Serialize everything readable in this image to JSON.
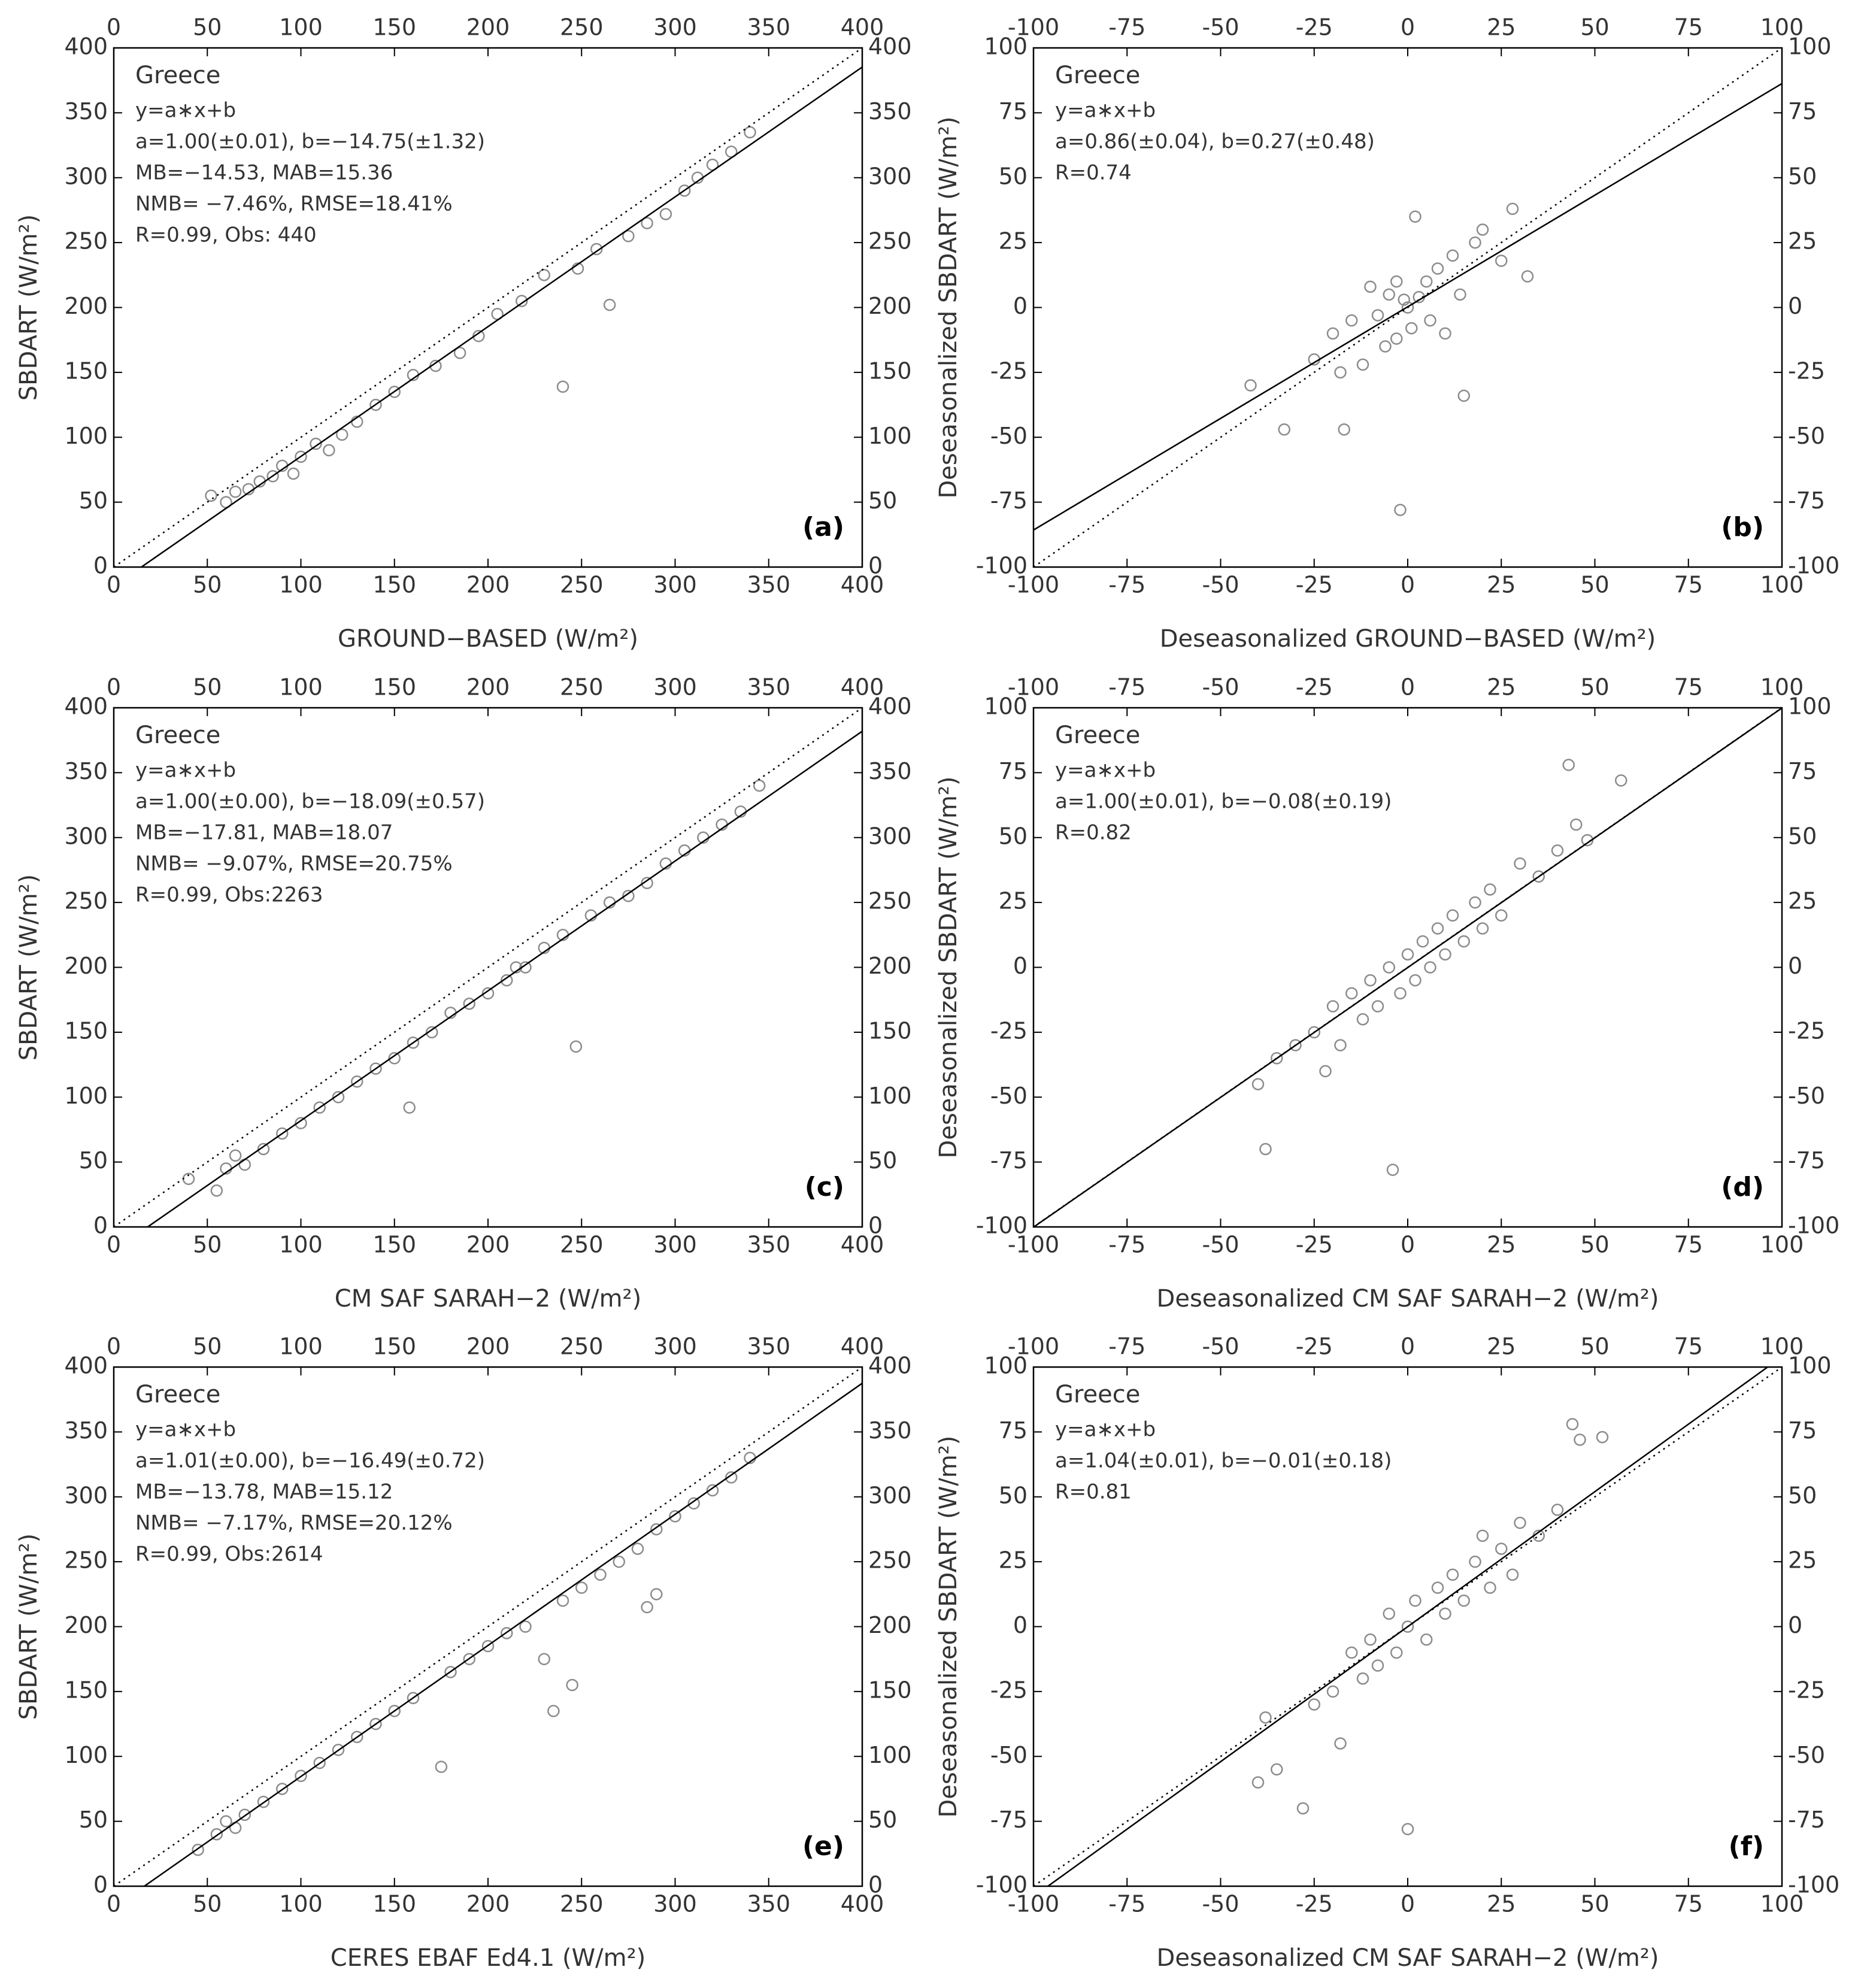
{
  "chart_data": [
    {
      "type": "scatter",
      "xlabel": "GROUND−BASED (W/m²)",
      "ylabel": "SBDART (W/m²)",
      "panel_label": "(a)",
      "annotations": [
        "Greece",
        "y=a∗x+b",
        "a=1.00(±0.01), b=−14.75(±1.32)",
        "MB=−14.53, MAB=15.36",
        "NMB= −7.46%, RMSE=18.41%",
        "R=0.99, Obs: 440"
      ],
      "fit": {
        "slope": 1.0,
        "intercept": -14.75
      },
      "color": "#8c8c8c",
      "xlim": [
        0,
        400
      ],
      "ylim": [
        0,
        400
      ],
      "xticks": [
        0,
        50,
        100,
        150,
        200,
        250,
        300,
        350,
        400
      ],
      "yticks": [
        0,
        50,
        100,
        150,
        200,
        250,
        300,
        350,
        400
      ],
      "x": [
        52,
        60,
        65,
        72,
        78,
        85,
        90,
        96,
        100,
        108,
        115,
        122,
        130,
        140,
        150,
        160,
        172,
        185,
        195,
        205,
        218,
        230,
        240,
        248,
        258,
        265,
        275,
        285,
        295,
        305,
        312,
        320,
        330,
        340
      ],
      "values": [
        55,
        50,
        58,
        60,
        66,
        70,
        78,
        72,
        85,
        95,
        90,
        102,
        112,
        125,
        135,
        148,
        155,
        165,
        178,
        195,
        205,
        225,
        139,
        230,
        245,
        202,
        255,
        265,
        272,
        290,
        300,
        310,
        320,
        335
      ]
    },
    {
      "type": "scatter",
      "xlabel": "Deseasonalized GROUND−BASED (W/m²)",
      "ylabel": "Deseasonalized SBDART (W/m²)",
      "panel_label": "(b)",
      "annotations": [
        "Greece",
        "y=a∗x+b",
        "a=0.86(±0.04), b=0.27(±0.48)",
        "R=0.74"
      ],
      "fit": {
        "slope": 0.86,
        "intercept": 0.27
      },
      "color": "#8c8c8c",
      "xlim": [
        -100,
        100
      ],
      "ylim": [
        -100,
        100
      ],
      "xticks": [
        -100,
        -75,
        -50,
        -25,
        0,
        25,
        50,
        75,
        100
      ],
      "yticks": [
        -100,
        -75,
        -50,
        -25,
        0,
        25,
        50,
        75,
        100
      ],
      "x": [
        -42,
        -33,
        -25,
        -20,
        -18,
        -15,
        -12,
        -10,
        -8,
        -6,
        -5,
        -3,
        -2,
        -1,
        0,
        1,
        2,
        3,
        5,
        6,
        8,
        10,
        12,
        15,
        18,
        20,
        25,
        28,
        32,
        -3,
        -17,
        14
      ],
      "values": [
        -30,
        -47,
        -20,
        -10,
        -25,
        -5,
        -22,
        8,
        -3,
        -15,
        5,
        -12,
        -78,
        3,
        0,
        -8,
        35,
        4,
        10,
        -5,
        15,
        -10,
        20,
        -34,
        25,
        30,
        18,
        38,
        12,
        10,
        -47,
        5
      ]
    },
    {
      "type": "scatter",
      "xlabel": "CM SAF SARAH−2 (W/m²)",
      "ylabel": "SBDART (W/m²)",
      "panel_label": "(c)",
      "annotations": [
        "Greece",
        "y=a∗x+b",
        "a=1.00(±0.00), b=−18.09(±0.57)",
        "MB=−17.81, MAB=18.07",
        "NMB= −9.07%, RMSE=20.75%",
        "R=0.99, Obs:2263"
      ],
      "fit": {
        "slope": 1.0,
        "intercept": -18.09
      },
      "color": "#8c8c8c",
      "xlim": [
        0,
        400
      ],
      "ylim": [
        0,
        400
      ],
      "xticks": [
        0,
        50,
        100,
        150,
        200,
        250,
        300,
        350,
        400
      ],
      "yticks": [
        0,
        50,
        100,
        150,
        200,
        250,
        300,
        350,
        400
      ],
      "x": [
        40,
        55,
        60,
        65,
        70,
        80,
        90,
        100,
        110,
        120,
        130,
        140,
        150,
        160,
        170,
        180,
        190,
        200,
        210,
        220,
        230,
        240,
        247,
        255,
        265,
        275,
        285,
        295,
        305,
        315,
        325,
        335,
        345,
        215,
        158
      ],
      "values": [
        37,
        28,
        45,
        55,
        48,
        60,
        72,
        80,
        92,
        100,
        112,
        122,
        130,
        142,
        150,
        165,
        172,
        180,
        190,
        200,
        215,
        225,
        139,
        240,
        250,
        255,
        265,
        280,
        290,
        300,
        310,
        320,
        340,
        200,
        92
      ]
    },
    {
      "type": "scatter",
      "xlabel": "Deseasonalized CM SAF SARAH−2 (W/m²)",
      "ylabel": "Deseasonalized SBDART (W/m²)",
      "panel_label": "(d)",
      "annotations": [
        "Greece",
        "y=a∗x+b",
        "a=1.00(±0.01), b=−0.08(±0.19)",
        "R=0.82"
      ],
      "fit": {
        "slope": 1.0,
        "intercept": -0.08
      },
      "color": "#8c8c8c",
      "xlim": [
        -100,
        100
      ],
      "ylim": [
        -100,
        100
      ],
      "xticks": [
        -100,
        -75,
        -50,
        -25,
        0,
        25,
        50,
        75,
        100
      ],
      "yticks": [
        -100,
        -75,
        -50,
        -25,
        0,
        25,
        50,
        75,
        100
      ],
      "x": [
        -40,
        -38,
        -35,
        -30,
        -25,
        -22,
        -20,
        -18,
        -15,
        -12,
        -10,
        -8,
        -5,
        -4,
        -2,
        0,
        2,
        4,
        6,
        8,
        10,
        12,
        15,
        18,
        20,
        22,
        25,
        30,
        35,
        40,
        43,
        45,
        57,
        48
      ],
      "values": [
        -45,
        -70,
        -35,
        -30,
        -25,
        -40,
        -15,
        -30,
        -10,
        -20,
        -5,
        -15,
        0,
        -78,
        -10,
        5,
        -5,
        10,
        0,
        15,
        5,
        20,
        10,
        25,
        15,
        30,
        20,
        40,
        35,
        45,
        78,
        55,
        72,
        49
      ]
    },
    {
      "type": "scatter",
      "xlabel": "CERES EBAF Ed4.1 (W/m²)",
      "ylabel": "SBDART (W/m²)",
      "panel_label": "(e)",
      "annotations": [
        "Greece",
        "y=a∗x+b",
        "a=1.01(±0.00), b=−16.49(±0.72)",
        "MB=−13.78, MAB=15.12",
        "NMB= −7.17%, RMSE=20.12%",
        "R=0.99, Obs:2614"
      ],
      "fit": {
        "slope": 1.01,
        "intercept": -16.49
      },
      "color": "#8c8c8c",
      "xlim": [
        0,
        400
      ],
      "ylim": [
        0,
        400
      ],
      "xticks": [
        0,
        50,
        100,
        150,
        200,
        250,
        300,
        350,
        400
      ],
      "yticks": [
        0,
        50,
        100,
        150,
        200,
        250,
        300,
        350,
        400
      ],
      "x": [
        45,
        55,
        60,
        65,
        70,
        80,
        90,
        100,
        110,
        120,
        130,
        140,
        150,
        160,
        175,
        180,
        190,
        200,
        210,
        220,
        230,
        240,
        250,
        260,
        270,
        280,
        285,
        290,
        300,
        310,
        320,
        330,
        340,
        235,
        245,
        290
      ],
      "values": [
        28,
        40,
        50,
        45,
        55,
        65,
        75,
        85,
        95,
        105,
        115,
        125,
        135,
        145,
        92,
        165,
        175,
        185,
        195,
        200,
        175,
        220,
        230,
        240,
        250,
        260,
        215,
        275,
        285,
        295,
        305,
        315,
        330,
        135,
        155,
        225
      ]
    },
    {
      "type": "scatter",
      "xlabel": "Deseasonalized CM SAF SARAH−2 (W/m²)",
      "ylabel": "Deseasonalized SBDART (W/m²)",
      "panel_label": "(f)",
      "annotations": [
        "Greece",
        "y=a∗x+b",
        "a=1.04(±0.01), b=−0.01(±0.18)",
        "R=0.81"
      ],
      "fit": {
        "slope": 1.04,
        "intercept": -0.01
      },
      "color": "#8c8c8c",
      "xlim": [
        -100,
        100
      ],
      "ylim": [
        -100,
        100
      ],
      "xticks": [
        -100,
        -75,
        -50,
        -25,
        0,
        25,
        50,
        75,
        100
      ],
      "yticks": [
        -100,
        -75,
        -50,
        -25,
        0,
        25,
        50,
        75,
        100
      ],
      "x": [
        -40,
        -38,
        -35,
        -28,
        -25,
        -20,
        -18,
        -15,
        -12,
        -10,
        -8,
        -5,
        -3,
        0,
        0,
        2,
        5,
        8,
        10,
        12,
        15,
        18,
        20,
        22,
        25,
        28,
        30,
        35,
        40,
        44,
        46,
        52
      ],
      "values": [
        -60,
        -35,
        -55,
        -70,
        -30,
        -25,
        -45,
        -10,
        -20,
        -5,
        -15,
        5,
        -10,
        -78,
        0,
        10,
        -5,
        15,
        5,
        20,
        10,
        25,
        35,
        15,
        30,
        20,
        40,
        35,
        45,
        78,
        72,
        73
      ]
    }
  ]
}
